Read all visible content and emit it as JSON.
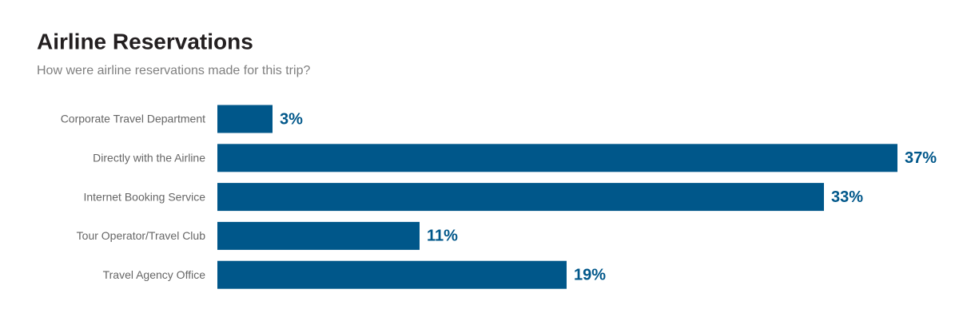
{
  "chart_data": {
    "type": "bar",
    "orientation": "horizontal",
    "title": "Airline Reservations",
    "subtitle": "How were airline reservations made for this trip?",
    "categories": [
      "Corporate Travel Department",
      "Directly with the Airline",
      "Internet Booking Service",
      "Tour Operator/Travel Club",
      "Travel Agency Office"
    ],
    "values": [
      3,
      37,
      33,
      11,
      19
    ],
    "value_labels": [
      "3%",
      "37%",
      "33%",
      "11%",
      "19%"
    ],
    "color": "#00578a"
  }
}
